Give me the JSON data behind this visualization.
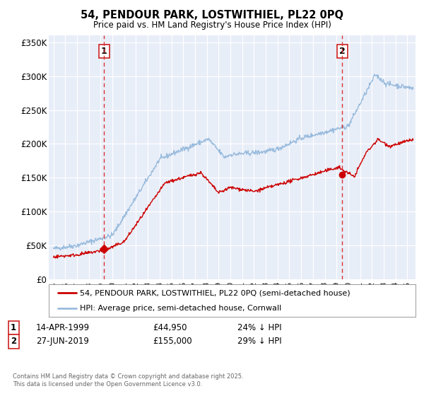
{
  "title": "54, PENDOUR PARK, LOSTWITHIEL, PL22 0PQ",
  "subtitle": "Price paid vs. HM Land Registry's House Price Index (HPI)",
  "red_label": "54, PENDOUR PARK, LOSTWITHIEL, PL22 0PQ (semi-detached house)",
  "blue_label": "HPI: Average price, semi-detached house, Cornwall",
  "footnote": "Contains HM Land Registry data © Crown copyright and database right 2025.\nThis data is licensed under the Open Government Licence v3.0.",
  "transaction1": {
    "label": "1",
    "date": "14-APR-1999",
    "price": "£44,950",
    "hpi": "24% ↓ HPI",
    "year": 1999.29,
    "value": 44950
  },
  "transaction2": {
    "label": "2",
    "date": "27-JUN-2019",
    "price": "£155,000",
    "hpi": "29% ↓ HPI",
    "value": 155000,
    "year": 2019.49
  },
  "vline1_year": 1999.29,
  "vline2_year": 2019.49,
  "ylim": [
    0,
    360000
  ],
  "xlim_start": 1994.6,
  "xlim_end": 2025.7,
  "yticks": [
    0,
    50000,
    100000,
    150000,
    200000,
    250000,
    300000,
    350000
  ],
  "ytick_labels": [
    "£0",
    "£50K",
    "£100K",
    "£150K",
    "£200K",
    "£250K",
    "£300K",
    "£350K"
  ],
  "background_color": "#ffffff",
  "plot_bg_color": "#e8eef8",
  "grid_color": "#ffffff",
  "red_line_color": "#cc0000",
  "blue_line_color": "#99bbdd",
  "vline_color": "#dd3333",
  "marker_color": "#cc0000"
}
